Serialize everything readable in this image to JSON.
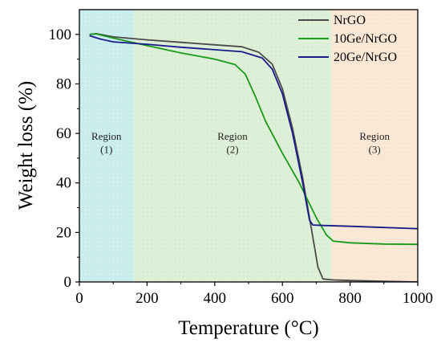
{
  "chart_data": {
    "type": "line",
    "xlabel": "Temperature (°C)",
    "ylabel": "Weight loss (%)",
    "xlim": [
      0,
      1000
    ],
    "ylim": [
      0,
      110
    ],
    "xticks": [
      0,
      200,
      400,
      600,
      800,
      1000
    ],
    "yticks": [
      0,
      20,
      40,
      60,
      80,
      100
    ],
    "grid": false,
    "legend": "top-right",
    "regions": [
      {
        "label": "Region",
        "sublabel": "(1)",
        "x_range": [
          0,
          160
        ],
        "color": "#c9ecec"
      },
      {
        "label": "Region",
        "sublabel": "(2)",
        "x_range": [
          160,
          745
        ],
        "color": "#dcefd6"
      },
      {
        "label": "Region",
        "sublabel": "(3)",
        "x_range": [
          745,
          1000
        ],
        "color": "#f9e7d4"
      }
    ],
    "series": [
      {
        "name": "NrGO",
        "color": "#4a4a4a",
        "points": [
          [
            30,
            100
          ],
          [
            50,
            100.3
          ],
          [
            100,
            99
          ],
          [
            200,
            97.8
          ],
          [
            300,
            96.8
          ],
          [
            400,
            95.8
          ],
          [
            480,
            95
          ],
          [
            530,
            92.8
          ],
          [
            570,
            88
          ],
          [
            600,
            78
          ],
          [
            630,
            62
          ],
          [
            660,
            42
          ],
          [
            690,
            18
          ],
          [
            705,
            6
          ],
          [
            720,
            1.2
          ],
          [
            750,
            0.8
          ],
          [
            800,
            0.6
          ],
          [
            900,
            0.3
          ],
          [
            1000,
            0
          ]
        ]
      },
      {
        "name": "10Ge/NrGO",
        "color": "#1a9a1a",
        "points": [
          [
            30,
            100
          ],
          [
            50,
            100.2
          ],
          [
            100,
            98.5
          ],
          [
            150,
            97
          ],
          [
            200,
            95.5
          ],
          [
            300,
            92.5
          ],
          [
            400,
            90
          ],
          [
            460,
            87.8
          ],
          [
            490,
            84
          ],
          [
            520,
            75
          ],
          [
            550,
            65
          ],
          [
            600,
            52
          ],
          [
            650,
            40
          ],
          [
            700,
            26
          ],
          [
            730,
            19
          ],
          [
            750,
            16.5
          ],
          [
            800,
            15.8
          ],
          [
            900,
            15.3
          ],
          [
            1000,
            15.2
          ]
        ]
      },
      {
        "name": "20Ge/NrGO",
        "color": "#1a1a8c",
        "points": [
          [
            30,
            99.5
          ],
          [
            60,
            98.2
          ],
          [
            100,
            97
          ],
          [
            150,
            96.5
          ],
          [
            200,
            96
          ],
          [
            300,
            94.8
          ],
          [
            400,
            93.8
          ],
          [
            480,
            93
          ],
          [
            540,
            90.5
          ],
          [
            570,
            86
          ],
          [
            600,
            76
          ],
          [
            630,
            60
          ],
          [
            660,
            40
          ],
          [
            680,
            25
          ],
          [
            690,
            23
          ],
          [
            720,
            22.8
          ],
          [
            800,
            22.5
          ],
          [
            900,
            22
          ],
          [
            1000,
            21.5
          ]
        ]
      }
    ]
  }
}
